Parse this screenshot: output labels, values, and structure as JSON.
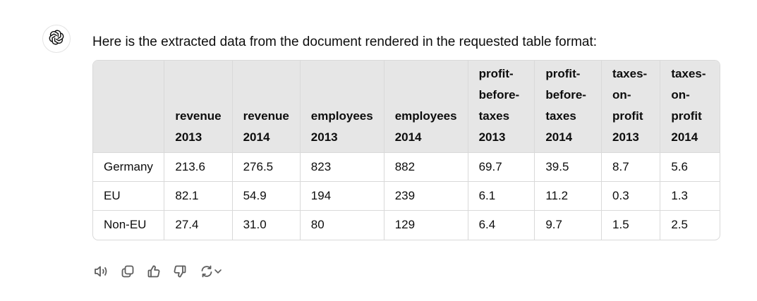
{
  "message": {
    "intro": "Here is the extracted data from the document rendered in the requested table format:"
  },
  "table": {
    "headers": [
      "",
      "revenue 2013",
      "revenue 2014",
      "employees 2013",
      "employees 2014",
      "profit-before-taxes 2013",
      "profit-before-taxes 2014",
      "taxes-on-profit 2013",
      "taxes-on-profit 2014"
    ],
    "header_lines": [
      [],
      [
        "revenue",
        "2013"
      ],
      [
        "revenue",
        "2014"
      ],
      [
        "employees",
        "2013"
      ],
      [
        "employees",
        "2014"
      ],
      [
        "profit-",
        "before-",
        "taxes",
        "2013"
      ],
      [
        "profit-",
        "before-",
        "taxes",
        "2014"
      ],
      [
        "taxes-",
        "on-",
        "profit",
        "2013"
      ],
      [
        "taxes-",
        "on-",
        "profit",
        "2014"
      ]
    ],
    "rows": [
      [
        "Germany",
        "213.6",
        "276.5",
        "823",
        "882",
        "69.7",
        "39.5",
        "8.7",
        "5.6"
      ],
      [
        "EU",
        "82.1",
        "54.9",
        "194",
        "239",
        "6.1",
        "11.2",
        "0.3",
        "1.3"
      ],
      [
        "Non-EU",
        "27.4",
        "31.0",
        "80",
        "129",
        "6.4",
        "9.7",
        "1.5",
        "2.5"
      ]
    ]
  },
  "icons": {
    "avatar": "openai-logo-icon",
    "actions": [
      "read-aloud-icon",
      "copy-icon",
      "thumbs-up-icon",
      "thumbs-down-icon",
      "regenerate-icon"
    ]
  },
  "colors": {
    "header_bg": "#e6e6e6",
    "border": "#d9d9d9",
    "text": "#0d0d0d",
    "icon": "#5d5d5d"
  }
}
